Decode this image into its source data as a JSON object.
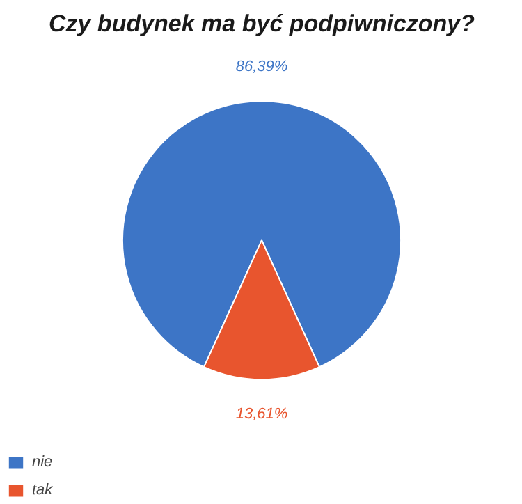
{
  "chart_data": {
    "type": "pie",
    "title": "Czy budynek ma być podpiwniczony?",
    "categories": [
      "nie",
      "tak"
    ],
    "values": [
      86.39,
      13.61
    ],
    "colors": [
      "#3d75c6",
      "#e8552e"
    ],
    "value_labels": [
      "86,39%",
      "13,61%"
    ],
    "legend": "bottom left"
  }
}
